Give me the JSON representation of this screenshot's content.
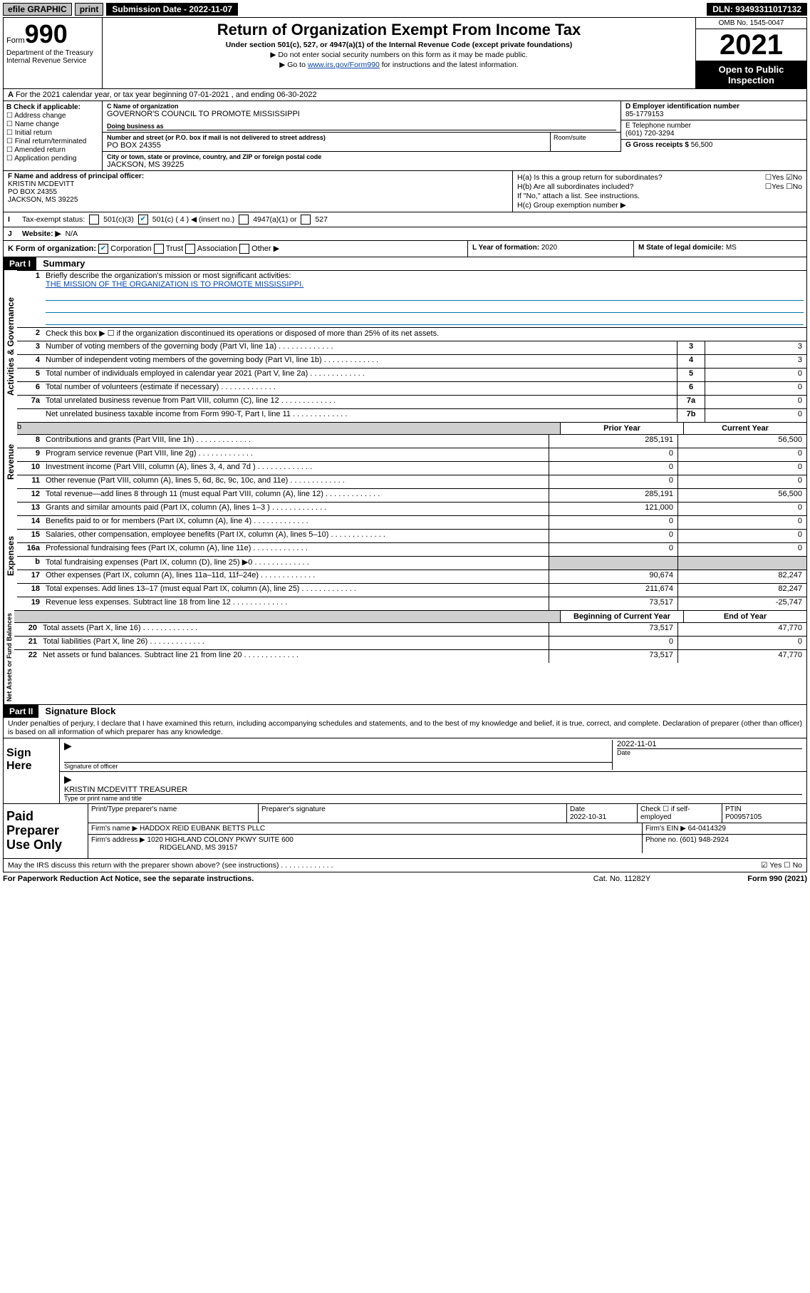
{
  "topbar": {
    "efile": "efile GRAPHIC",
    "print": "print",
    "submission": "Submission Date - 2022-11-07",
    "dln": "DLN: 93493311017132"
  },
  "header": {
    "form_prefix": "Form",
    "form_num": "990",
    "dept": "Department of the Treasury",
    "irs": "Internal Revenue Service",
    "title": "Return of Organization Exempt From Income Tax",
    "subtitle": "Under section 501(c), 527, or 4947(a)(1) of the Internal Revenue Code (except private foundations)",
    "line1": "▶ Do not enter social security numbers on this form as it may be made public.",
    "line2_pre": "▶ Go to ",
    "line2_link": "www.irs.gov/Form990",
    "line2_post": " for instructions and the latest information.",
    "omb": "OMB No. 1545-0047",
    "year": "2021",
    "open": "Open to Public Inspection"
  },
  "row_a": "For the 2021 calendar year, or tax year beginning 07-01-2021   , and ending 06-30-2022",
  "col_b": {
    "title": "B Check if applicable:",
    "items": [
      "Address change",
      "Name change",
      "Initial return",
      "Final return/terminated",
      "Amended return",
      "Application pending"
    ]
  },
  "col_c": {
    "name_lbl": "C Name of organization",
    "name": "GOVERNOR'S COUNCIL TO PROMOTE MISSISSIPPI",
    "dba_lbl": "Doing business as",
    "dba": "",
    "addr_lbl": "Number and street (or P.O. box if mail is not delivered to street address)",
    "room_lbl": "Room/suite",
    "addr": "PO BOX 24355",
    "city_lbl": "City or town, state or province, country, and ZIP or foreign postal code",
    "city": "JACKSON, MS  39225"
  },
  "col_d": {
    "ein_lbl": "D Employer identification number",
    "ein": "85-1779153",
    "tel_lbl": "E Telephone number",
    "tel": "(601) 720-3294",
    "gross_lbl": "G Gross receipts $",
    "gross": "56,500"
  },
  "col_f": {
    "lbl": "F Name and address of principal officer:",
    "l1": "KRISTIN MCDEVITT",
    "l2": "PO BOX 24355",
    "l3": "JACKSON, MS  39225"
  },
  "col_h": {
    "ha": "H(a)  Is this a group return for subordinates?",
    "hb": "H(b)  Are all subordinates included?",
    "hb2": "If \"No,\" attach a list. See instructions.",
    "hc": "H(c)  Group exemption number ▶"
  },
  "row_i": {
    "lbl": "Tax-exempt status:",
    "opts": [
      "501(c)(3)",
      "501(c) ( 4 ) ◀ (insert no.)",
      "4947(a)(1) or",
      "527"
    ]
  },
  "row_j": {
    "lbl": "Website: ▶",
    "val": "N/A"
  },
  "row_k": {
    "lbl": "K Form of organization:",
    "opts": [
      "Corporation",
      "Trust",
      "Association",
      "Other ▶"
    ],
    "l_lbl": "L Year of formation:",
    "l_val": "2020",
    "m_lbl": "M State of legal domicile:",
    "m_val": "MS"
  },
  "part1": {
    "hdr": "Part I",
    "title": "Summary",
    "q1": "Briefly describe the organization's mission or most significant activities:",
    "mission": "THE MISSION OF THE ORGANIZATION IS TO PROMOTE MISSISSIPPI.",
    "q2": "Check this box ▶ ☐  if the organization discontinued its operations or disposed of more than 25% of its net assets.",
    "lines_gov": [
      {
        "n": "3",
        "t": "Number of voting members of the governing body (Part VI, line 1a)",
        "box": "3",
        "v": "3"
      },
      {
        "n": "4",
        "t": "Number of independent voting members of the governing body (Part VI, line 1b)",
        "box": "4",
        "v": "3"
      },
      {
        "n": "5",
        "t": "Total number of individuals employed in calendar year 2021 (Part V, line 2a)",
        "box": "5",
        "v": "0"
      },
      {
        "n": "6",
        "t": "Total number of volunteers (estimate if necessary)",
        "box": "6",
        "v": "0"
      },
      {
        "n": "7a",
        "t": "Total unrelated business revenue from Part VIII, column (C), line 12",
        "box": "7a",
        "v": "0"
      },
      {
        "n": "",
        "t": "Net unrelated business taxable income from Form 990-T, Part I, line 11",
        "box": "7b",
        "v": "0"
      }
    ],
    "hdr_prior": "Prior Year",
    "hdr_curr": "Current Year",
    "rev": [
      {
        "n": "8",
        "t": "Contributions and grants (Part VIII, line 1h)",
        "p": "285,191",
        "c": "56,500"
      },
      {
        "n": "9",
        "t": "Program service revenue (Part VIII, line 2g)",
        "p": "0",
        "c": "0"
      },
      {
        "n": "10",
        "t": "Investment income (Part VIII, column (A), lines 3, 4, and 7d )",
        "p": "0",
        "c": "0"
      },
      {
        "n": "11",
        "t": "Other revenue (Part VIII, column (A), lines 5, 6d, 8c, 9c, 10c, and 11e)",
        "p": "0",
        "c": "0"
      },
      {
        "n": "12",
        "t": "Total revenue—add lines 8 through 11 (must equal Part VIII, column (A), line 12)",
        "p": "285,191",
        "c": "56,500"
      }
    ],
    "exp": [
      {
        "n": "13",
        "t": "Grants and similar amounts paid (Part IX, column (A), lines 1–3 )",
        "p": "121,000",
        "c": "0"
      },
      {
        "n": "14",
        "t": "Benefits paid to or for members (Part IX, column (A), line 4)",
        "p": "0",
        "c": "0"
      },
      {
        "n": "15",
        "t": "Salaries, other compensation, employee benefits (Part IX, column (A), lines 5–10)",
        "p": "0",
        "c": "0"
      },
      {
        "n": "16a",
        "t": "Professional fundraising fees (Part IX, column (A), line 11e)",
        "p": "0",
        "c": "0"
      },
      {
        "n": "b",
        "t": "Total fundraising expenses (Part IX, column (D), line 25) ▶0",
        "p": "",
        "c": "",
        "shade": true
      },
      {
        "n": "17",
        "t": "Other expenses (Part IX, column (A), lines 11a–11d, 11f–24e)",
        "p": "90,674",
        "c": "82,247"
      },
      {
        "n": "18",
        "t": "Total expenses. Add lines 13–17 (must equal Part IX, column (A), line 25)",
        "p": "211,674",
        "c": "82,247"
      },
      {
        "n": "19",
        "t": "Revenue less expenses. Subtract line 18 from line 12",
        "p": "73,517",
        "c": "-25,747"
      }
    ],
    "hdr_boy": "Beginning of Current Year",
    "hdr_eoy": "End of Year",
    "net": [
      {
        "n": "20",
        "t": "Total assets (Part X, line 16)",
        "p": "73,517",
        "c": "47,770"
      },
      {
        "n": "21",
        "t": "Total liabilities (Part X, line 26)",
        "p": "0",
        "c": "0"
      },
      {
        "n": "22",
        "t": "Net assets or fund balances. Subtract line 21 from line 20",
        "p": "73,517",
        "c": "47,770"
      }
    ],
    "vlab_gov": "Activities & Governance",
    "vlab_rev": "Revenue",
    "vlab_exp": "Expenses",
    "vlab_net": "Net Assets or Fund Balances"
  },
  "part2": {
    "hdr": "Part II",
    "title": "Signature Block",
    "penalty": "Under penalties of perjury, I declare that I have examined this return, including accompanying schedules and statements, and to the best of my knowledge and belief, it is true, correct, and complete. Declaration of preparer (other than officer) is based on all information of which preparer has any knowledge.",
    "sign_here": "Sign Here",
    "sig_officer": "Signature of officer",
    "sig_date_lbl": "Date",
    "sig_date": "2022-11-01",
    "sig_name": "KRISTIN MCDEVITT TREASURER",
    "sig_name_lbl": "Type or print name and title",
    "paid": "Paid Preparer Use Only",
    "prep_name_lbl": "Print/Type preparer's name",
    "prep_sig_lbl": "Preparer's signature",
    "prep_date_lbl": "Date",
    "prep_date": "2022-10-31",
    "prep_self": "Check ☐ if self-employed",
    "ptin_lbl": "PTIN",
    "ptin": "P00957105",
    "firm_name_lbl": "Firm's name    ▶",
    "firm_name": "HADDOX REID EUBANK BETTS PLLC",
    "firm_ein_lbl": "Firm's EIN ▶",
    "firm_ein": "64-0414329",
    "firm_addr_lbl": "Firm's address ▶",
    "firm_addr": "1020 HIGHLAND COLONY PKWY SUITE 600",
    "firm_city": "RIDGELAND, MS  39157",
    "phone_lbl": "Phone no.",
    "phone": "(601) 948-2924",
    "may_irs": "May the IRS discuss this return with the preparer shown above? (see instructions)"
  },
  "footer": {
    "pra": "For Paperwork Reduction Act Notice, see the separate instructions.",
    "cat": "Cat. No. 11282Y",
    "form": "Form 990 (2021)"
  }
}
